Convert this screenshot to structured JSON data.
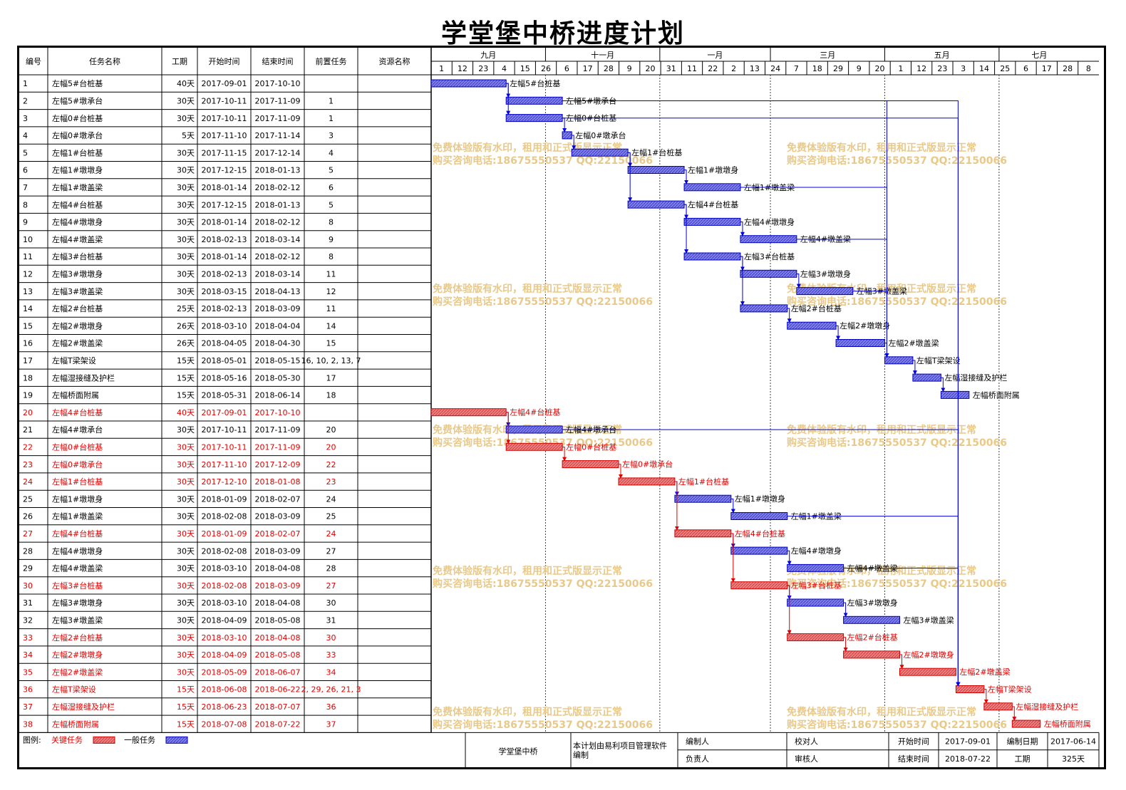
{
  "title": "学堂堡中桥进度计划",
  "table": {
    "columns": [
      "编号",
      "任务名称",
      "工期",
      "开始时间",
      "结束时间",
      "前置任务",
      "资源名称"
    ]
  },
  "timeline": {
    "months": [
      "九月",
      "十一月",
      "一月",
      "三月",
      "五月",
      "七月"
    ],
    "days": [
      "1",
      "12",
      "23",
      "4",
      "15",
      "26",
      "6",
      "17",
      "28",
      "9",
      "20",
      "31",
      "11",
      "22",
      "2",
      "13",
      "24",
      "7",
      "18",
      "29",
      "9",
      "20",
      "1",
      "12",
      "23",
      "3",
      "14",
      "25",
      "6",
      "17",
      "28",
      "8"
    ]
  },
  "chart_data": {
    "type": "gantt",
    "title": "学堂堡中桥进度计划",
    "tasks": [
      {
        "id": "1",
        "name": "左幅5#台桩基",
        "duration": "40天",
        "start": "2017-09-01",
        "end": "2017-10-10",
        "pred": "",
        "critical": false
      },
      {
        "id": "2",
        "name": "左幅5#墩承台",
        "duration": "30天",
        "start": "2017-10-11",
        "end": "2017-11-09",
        "pred": "1",
        "critical": false
      },
      {
        "id": "3",
        "name": "左幅0#台桩基",
        "duration": "30天",
        "start": "2017-10-11",
        "end": "2017-11-09",
        "pred": "1",
        "critical": false
      },
      {
        "id": "4",
        "name": "左幅0#墩承台",
        "duration": "5天",
        "start": "2017-11-10",
        "end": "2017-11-14",
        "pred": "3",
        "critical": false
      },
      {
        "id": "5",
        "name": "左幅1#台桩基",
        "duration": "30天",
        "start": "2017-11-15",
        "end": "2017-12-14",
        "pred": "4",
        "critical": false
      },
      {
        "id": "6",
        "name": "左幅1#墩墩身",
        "duration": "30天",
        "start": "2017-12-15",
        "end": "2018-01-13",
        "pred": "5",
        "critical": false
      },
      {
        "id": "7",
        "name": "左幅1#墩盖梁",
        "duration": "30天",
        "start": "2018-01-14",
        "end": "2018-02-12",
        "pred": "6",
        "critical": false
      },
      {
        "id": "8",
        "name": "左幅4#台桩基",
        "duration": "30天",
        "start": "2017-12-15",
        "end": "2018-01-13",
        "pred": "5",
        "critical": false
      },
      {
        "id": "9",
        "name": "左幅4#墩墩身",
        "duration": "30天",
        "start": "2018-01-14",
        "end": "2018-02-12",
        "pred": "8",
        "critical": false
      },
      {
        "id": "10",
        "name": "左幅4#墩盖梁",
        "duration": "30天",
        "start": "2018-02-13",
        "end": "2018-03-14",
        "pred": "9",
        "critical": false
      },
      {
        "id": "11",
        "name": "左幅3#台桩基",
        "duration": "30天",
        "start": "2018-01-14",
        "end": "2018-02-12",
        "pred": "8",
        "critical": false
      },
      {
        "id": "12",
        "name": "左幅3#墩墩身",
        "duration": "30天",
        "start": "2018-02-13",
        "end": "2018-03-14",
        "pred": "11",
        "critical": false
      },
      {
        "id": "13",
        "name": "左幅3#墩盖梁",
        "duration": "30天",
        "start": "2018-03-15",
        "end": "2018-04-13",
        "pred": "12",
        "critical": false
      },
      {
        "id": "14",
        "name": "左幅2#台桩基",
        "duration": "25天",
        "start": "2018-02-13",
        "end": "2018-03-09",
        "pred": "11",
        "critical": false
      },
      {
        "id": "15",
        "name": "左幅2#墩墩身",
        "duration": "26天",
        "start": "2018-03-10",
        "end": "2018-04-04",
        "pred": "14",
        "critical": false
      },
      {
        "id": "16",
        "name": "左幅2#墩盖梁",
        "duration": "26天",
        "start": "2018-04-05",
        "end": "2018-04-30",
        "pred": "15",
        "critical": false
      },
      {
        "id": "17",
        "name": "左幅T梁架设",
        "duration": "15天",
        "start": "2018-05-01",
        "end": "2018-05-15",
        "pred": "16, 10, 2, 13, 7",
        "critical": false
      },
      {
        "id": "18",
        "name": "左幅湿接缝及护栏",
        "duration": "15天",
        "start": "2018-05-16",
        "end": "2018-05-30",
        "pred": "17",
        "critical": false
      },
      {
        "id": "19",
        "name": "左幅桥面附属",
        "duration": "15天",
        "start": "2018-05-31",
        "end": "2018-06-14",
        "pred": "18",
        "critical": false
      },
      {
        "id": "20",
        "name": "左幅4#台桩基",
        "duration": "40天",
        "start": "2017-09-01",
        "end": "2017-10-10",
        "pred": "",
        "critical": true
      },
      {
        "id": "21",
        "name": "左幅4#墩承台",
        "duration": "30天",
        "start": "2017-10-11",
        "end": "2017-11-09",
        "pred": "20",
        "critical": false
      },
      {
        "id": "22",
        "name": "左幅0#台桩基",
        "duration": "30天",
        "start": "2017-10-11",
        "end": "2017-11-09",
        "pred": "20",
        "critical": true
      },
      {
        "id": "23",
        "name": "左幅0#墩承台",
        "duration": "30天",
        "start": "2017-11-10",
        "end": "2017-12-09",
        "pred": "22",
        "critical": true
      },
      {
        "id": "24",
        "name": "左幅1#台桩基",
        "duration": "30天",
        "start": "2017-12-10",
        "end": "2018-01-08",
        "pred": "23",
        "critical": true
      },
      {
        "id": "25",
        "name": "左幅1#墩墩身",
        "duration": "30天",
        "start": "2018-01-09",
        "end": "2018-02-07",
        "pred": "24",
        "critical": false
      },
      {
        "id": "26",
        "name": "左幅1#墩盖梁",
        "duration": "30天",
        "start": "2018-02-08",
        "end": "2018-03-09",
        "pred": "25",
        "critical": false
      },
      {
        "id": "27",
        "name": "左幅4#台桩基",
        "duration": "30天",
        "start": "2018-01-09",
        "end": "2018-02-07",
        "pred": "24",
        "critical": true
      },
      {
        "id": "28",
        "name": "左幅4#墩墩身",
        "duration": "30天",
        "start": "2018-02-08",
        "end": "2018-03-09",
        "pred": "27",
        "critical": false
      },
      {
        "id": "29",
        "name": "左幅4#墩盖梁",
        "duration": "30天",
        "start": "2018-03-10",
        "end": "2018-04-08",
        "pred": "28",
        "critical": false
      },
      {
        "id": "30",
        "name": "左幅3#台桩基",
        "duration": "30天",
        "start": "2018-02-08",
        "end": "2018-03-09",
        "pred": "27",
        "critical": true
      },
      {
        "id": "31",
        "name": "左幅3#墩墩身",
        "duration": "30天",
        "start": "2018-03-10",
        "end": "2018-04-08",
        "pred": "30",
        "critical": false
      },
      {
        "id": "32",
        "name": "左幅3#墩盖梁",
        "duration": "30天",
        "start": "2018-04-09",
        "end": "2018-05-08",
        "pred": "31",
        "critical": false
      },
      {
        "id": "33",
        "name": "左幅2#台桩基",
        "duration": "30天",
        "start": "2018-03-10",
        "end": "2018-04-08",
        "pred": "30",
        "critical": true
      },
      {
        "id": "34",
        "name": "左幅2#墩墩身",
        "duration": "30天",
        "start": "2018-04-09",
        "end": "2018-05-08",
        "pred": "33",
        "critical": true
      },
      {
        "id": "35",
        "name": "左幅2#墩盖梁",
        "duration": "30天",
        "start": "2018-05-09",
        "end": "2018-06-07",
        "pred": "34",
        "critical": true
      },
      {
        "id": "36",
        "name": "左幅T梁架设",
        "duration": "15天",
        "start": "2018-06-08",
        "end": "2018-06-22",
        "pred": "2, 29, 26, 21, 3",
        "critical": true
      },
      {
        "id": "37",
        "name": "左幅湿接缝及护栏",
        "duration": "15天",
        "start": "2018-06-23",
        "end": "2018-07-07",
        "pred": "36",
        "critical": true
      },
      {
        "id": "38",
        "name": "左幅桥面附属",
        "duration": "15天",
        "start": "2018-07-08",
        "end": "2018-07-22",
        "pred": "37",
        "critical": true
      }
    ]
  },
  "watermark": {
    "line1": "免费体验版有水印，租用和正式版显示正常",
    "line2": "购买咨询电话:18675550537 QQ:22150066"
  },
  "legend": {
    "label": "图例:",
    "critical": "关键任务",
    "normal": "一般任务"
  },
  "footer": {
    "project_name": "学堂堡中桥",
    "software_note": "本计划由易利项目管理软件编制",
    "compiler_label": "编制人",
    "checker_label": "校对人",
    "owner_label": "负责人",
    "reviewer_label": "审核人",
    "start_label": "开始时间",
    "start_value": "2017-09-01",
    "end_label": "结束时间",
    "end_value": "2018-07-22",
    "compile_date_label": "编制日期",
    "compile_date_value": "2017-06-14",
    "duration_label": "工期",
    "duration_value": "325天"
  },
  "colors": {
    "critical_fill": "#f08080",
    "critical_stroke": "#d00000",
    "critical_text": "#e00000",
    "normal_fill": "#8080f0",
    "normal_stroke": "#0000c0",
    "link_normal": "#0000e0",
    "link_critical": "#e00000",
    "watermark": "#e8c98a"
  }
}
